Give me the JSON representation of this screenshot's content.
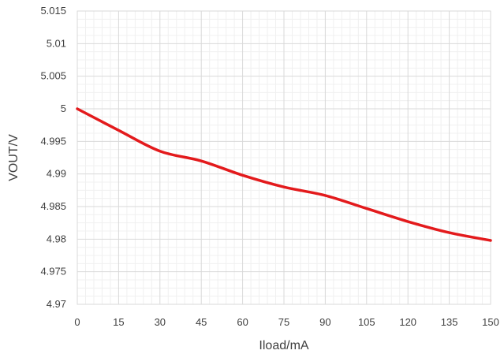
{
  "chart_data": {
    "type": "line",
    "title": "",
    "xlabel": "Iload/mA",
    "ylabel": "VOUT/V",
    "xlim": [
      0,
      150
    ],
    "ylim": [
      4.97,
      5.015
    ],
    "x_ticks": [
      "0",
      "15",
      "30",
      "45",
      "60",
      "75",
      "90",
      "105",
      "120",
      "135",
      "150"
    ],
    "x_tick_values": [
      0,
      15,
      30,
      45,
      60,
      75,
      90,
      105,
      120,
      135,
      150
    ],
    "y_ticks": [
      "4.97",
      "4.975",
      "4.98",
      "4.985",
      "4.99",
      "4.995",
      "5",
      "5.005",
      "5.01",
      "5.015"
    ],
    "y_tick_values": [
      4.97,
      4.975,
      4.98,
      4.985,
      4.99,
      4.995,
      5.0,
      5.005,
      5.01,
      5.015
    ],
    "grid": true,
    "minor_grid": true,
    "series": [
      {
        "color": "#e31a1c",
        "x": [
          0,
          15,
          30,
          45,
          60,
          75,
          90,
          105,
          120,
          135,
          150
        ],
        "y": [
          5.0,
          4.9967,
          4.9935,
          4.992,
          4.9898,
          4.988,
          4.9867,
          4.9847,
          4.9827,
          4.981,
          4.9798
        ]
      }
    ]
  }
}
